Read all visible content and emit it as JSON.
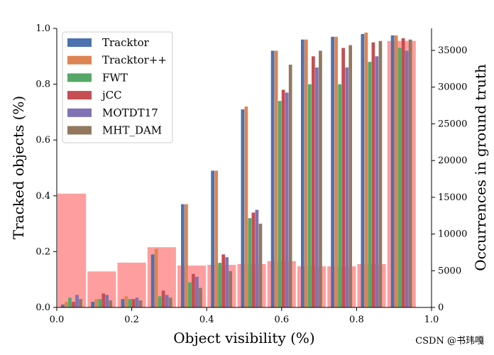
{
  "chart_data": {
    "type": "bar",
    "xlabel": "Object visibility (%)",
    "ylabel": "Tracked objects (%)",
    "y2label": "Occurrences in ground truth",
    "xlim": [
      0.0,
      1.0
    ],
    "ylim": [
      0.0,
      1.0
    ],
    "y2lim": [
      0,
      38000
    ],
    "xticks": [
      "0.0",
      "0.2",
      "0.4",
      "0.6",
      "0.8",
      "1.0"
    ],
    "yticks": [
      "0.0",
      "0.2",
      "0.4",
      "0.6",
      "0.8",
      "1.0"
    ],
    "y2ticks": [
      "0",
      "5000",
      "10000",
      "15000",
      "20000",
      "25000",
      "30000",
      "35000"
    ],
    "bin_centers": [
      0.04,
      0.12,
      0.2,
      0.28,
      0.36,
      0.44,
      0.52,
      0.6,
      0.68,
      0.76,
      0.84,
      0.92
    ],
    "series": [
      {
        "name": "Tracktor",
        "color": "#4c72b0",
        "values": [
          0.01,
          0.02,
          0.03,
          0.19,
          0.37,
          0.49,
          0.71,
          0.92,
          0.96,
          0.97,
          0.98,
          0.975
        ]
      },
      {
        "name": "Tracktor++",
        "color": "#dd8452",
        "values": [
          0.02,
          0.03,
          0.04,
          0.21,
          0.37,
          0.49,
          0.72,
          0.92,
          0.96,
          0.97,
          0.985,
          0.975
        ]
      },
      {
        "name": "FWT",
        "color": "#55a868",
        "values": [
          0.035,
          0.03,
          0.03,
          0.04,
          0.09,
          0.16,
          0.32,
          0.74,
          0.8,
          0.8,
          0.88,
          0.93
        ]
      },
      {
        "name": "jCC",
        "color": "#c44e52",
        "values": [
          0.02,
          0.05,
          0.03,
          0.06,
          0.12,
          0.19,
          0.34,
          0.78,
          0.9,
          0.93,
          0.95,
          0.965
        ]
      },
      {
        "name": "MOTDT17",
        "color": "#8172b3",
        "values": [
          0.045,
          0.045,
          0.035,
          0.045,
          0.11,
          0.18,
          0.35,
          0.77,
          0.86,
          0.86,
          0.9,
          0.92
        ]
      },
      {
        "name": "MHT_DAM",
        "color": "#937860",
        "values": [
          0.03,
          0.025,
          0.025,
          0.035,
          0.07,
          0.13,
          0.3,
          0.87,
          0.92,
          0.94,
          0.955,
          0.96
        ]
      }
    ],
    "occurrences": {
      "name": "Occurrences in ground truth",
      "color": "#ff9999",
      "bin_width": 0.08,
      "bins": [
        {
          "x": 0.0,
          "count": 15500
        },
        {
          "x": 0.08,
          "count": 4900
        },
        {
          "x": 0.16,
          "count": 6100
        },
        {
          "x": 0.24,
          "count": 8200
        },
        {
          "x": 0.32,
          "count": 5700
        },
        {
          "x": 0.4,
          "count": 5800
        },
        {
          "x": 0.48,
          "count": 5900
        },
        {
          "x": 0.56,
          "count": 6300
        },
        {
          "x": 0.64,
          "count": 5600
        },
        {
          "x": 0.72,
          "count": 5600
        },
        {
          "x": 0.8,
          "count": 5900
        },
        {
          "x": 0.88,
          "count": 36300
        }
      ]
    },
    "legend_placement": "upper-left"
  },
  "watermark": "CSDN @书玮嘎"
}
